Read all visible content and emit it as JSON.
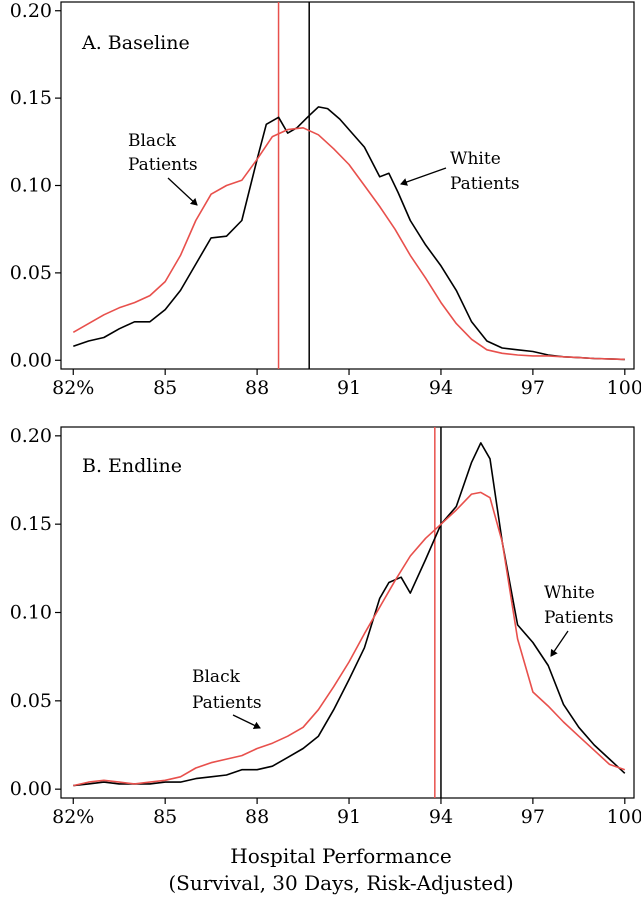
{
  "figure": {
    "xlabel": "Hospital Performance",
    "xlabel_sub": "(Survival, 30 Days, Risk-Adjusted)"
  },
  "chart_data": [
    {
      "type": "line",
      "title": "A. Baseline",
      "xlabel": "Hospital Performance (Survival, 30 Days, Risk-Adjusted)",
      "ylabel": "",
      "xlim": [
        81.6,
        100.3
      ],
      "ylim": [
        -0.005,
        0.205
      ],
      "xticks": [
        82,
        85,
        88,
        91,
        94,
        97,
        100
      ],
      "xtick_labels": [
        "82%",
        "85",
        "88",
        "91",
        "94",
        "97",
        "100"
      ],
      "yticks": [
        0,
        0.05,
        0.1,
        0.15,
        0.2
      ],
      "ytick_labels": [
        "0.00",
        "0.05",
        "0.10",
        "0.15",
        "0.20"
      ],
      "grid": false,
      "legend": "none",
      "series": [
        {
          "name": "White Patients",
          "color": "#000000",
          "x": [
            82,
            82.5,
            83,
            83.5,
            84,
            84.5,
            85,
            85.5,
            86,
            86.5,
            87,
            87.5,
            88,
            88.3,
            88.7,
            89,
            89.3,
            89.7,
            90,
            90.3,
            90.7,
            91,
            91.5,
            92,
            92.3,
            92.6,
            93,
            93.5,
            94,
            94.5,
            95,
            95.5,
            96,
            96.5,
            97,
            97.5,
            98,
            98.5,
            99,
            99.5,
            100
          ],
          "y": [
            0.008,
            0.011,
            0.013,
            0.018,
            0.022,
            0.022,
            0.029,
            0.04,
            0.055,
            0.07,
            0.071,
            0.08,
            0.115,
            0.135,
            0.139,
            0.13,
            0.133,
            0.14,
            0.145,
            0.144,
            0.138,
            0.132,
            0.122,
            0.105,
            0.107,
            0.096,
            0.08,
            0.066,
            0.054,
            0.04,
            0.022,
            0.011,
            0.007,
            0.006,
            0.005,
            0.003,
            0.002,
            0.0015,
            0.001,
            0.0008,
            0.0005
          ]
        },
        {
          "name": "Black Patients",
          "color": "#e8504c",
          "x": [
            82,
            82.5,
            83,
            83.5,
            84,
            84.5,
            85,
            85.5,
            86,
            86.5,
            87,
            87.5,
            88,
            88.5,
            89,
            89.5,
            90,
            90.5,
            91,
            91.5,
            92,
            92.5,
            93,
            93.5,
            94,
            94.5,
            95,
            95.5,
            96,
            96.5,
            97,
            97.5,
            98,
            98.5,
            99,
            99.5,
            100
          ],
          "y": [
            0.016,
            0.021,
            0.026,
            0.03,
            0.033,
            0.037,
            0.045,
            0.06,
            0.08,
            0.095,
            0.1,
            0.103,
            0.115,
            0.128,
            0.132,
            0.133,
            0.129,
            0.121,
            0.112,
            0.1,
            0.088,
            0.075,
            0.06,
            0.047,
            0.033,
            0.021,
            0.012,
            0.006,
            0.004,
            0.003,
            0.0025,
            0.0025,
            0.002,
            0.0015,
            0.001,
            0.0008,
            0.0005
          ]
        }
      ],
      "vlines": [
        {
          "series": "Black Patients",
          "x": 88.7,
          "color": "#e8504c"
        },
        {
          "series": "White Patients",
          "x": 89.7,
          "color": "#000000"
        }
      ],
      "annotations": [
        {
          "lines": [
            "Black",
            "Patients"
          ],
          "series": "Black Patients"
        },
        {
          "lines": [
            "White",
            "Patients"
          ],
          "series": "White Patients"
        }
      ]
    },
    {
      "type": "line",
      "title": "B. Endline",
      "xlabel": "Hospital Performance (Survival, 30 Days, Risk-Adjusted)",
      "ylabel": "",
      "xlim": [
        81.6,
        100.3
      ],
      "ylim": [
        -0.005,
        0.205
      ],
      "xticks": [
        82,
        85,
        88,
        91,
        94,
        97,
        100
      ],
      "xtick_labels": [
        "82%",
        "85",
        "88",
        "91",
        "94",
        "97",
        "100"
      ],
      "yticks": [
        0,
        0.05,
        0.1,
        0.15,
        0.2
      ],
      "ytick_labels": [
        "0.00",
        "0.05",
        "0.10",
        "0.15",
        "0.20"
      ],
      "grid": false,
      "legend": "none",
      "series": [
        {
          "name": "White Patients",
          "color": "#000000",
          "x": [
            82,
            82.5,
            83,
            83.5,
            84,
            84.5,
            85,
            85.5,
            86,
            86.5,
            87,
            87.5,
            88,
            88.5,
            89,
            89.5,
            90,
            90.5,
            91,
            91.5,
            92,
            92.3,
            92.7,
            93,
            93.5,
            94,
            94.5,
            95,
            95.3,
            95.6,
            96,
            96.5,
            97,
            97.5,
            98,
            98.5,
            99,
            99.5,
            100
          ],
          "y": [
            0.002,
            0.003,
            0.004,
            0.003,
            0.003,
            0.003,
            0.004,
            0.004,
            0.006,
            0.007,
            0.008,
            0.011,
            0.011,
            0.013,
            0.018,
            0.023,
            0.03,
            0.045,
            0.062,
            0.08,
            0.108,
            0.117,
            0.12,
            0.111,
            0.13,
            0.15,
            0.16,
            0.185,
            0.196,
            0.187,
            0.14,
            0.093,
            0.083,
            0.07,
            0.048,
            0.035,
            0.025,
            0.017,
            0.009
          ]
        },
        {
          "name": "Black Patients",
          "color": "#e8504c",
          "x": [
            82,
            82.5,
            83,
            83.5,
            84,
            84.5,
            85,
            85.5,
            86,
            86.5,
            87,
            87.5,
            88,
            88.5,
            89,
            89.5,
            90,
            90.5,
            91,
            91.5,
            92,
            92.5,
            93,
            93.5,
            94,
            94.5,
            95,
            95.3,
            95.6,
            96,
            96.5,
            97,
            97.5,
            98,
            98.5,
            99,
            99.5,
            100
          ],
          "y": [
            0.002,
            0.004,
            0.005,
            0.004,
            0.003,
            0.004,
            0.005,
            0.007,
            0.012,
            0.015,
            0.017,
            0.019,
            0.023,
            0.026,
            0.03,
            0.035,
            0.045,
            0.058,
            0.072,
            0.088,
            0.103,
            0.118,
            0.132,
            0.142,
            0.15,
            0.158,
            0.167,
            0.168,
            0.165,
            0.14,
            0.085,
            0.055,
            0.047,
            0.038,
            0.03,
            0.022,
            0.014,
            0.011
          ]
        }
      ],
      "vlines": [
        {
          "series": "Black Patients",
          "x": 93.8,
          "color": "#e8504c"
        },
        {
          "series": "White Patients",
          "x": 94.0,
          "color": "#000000"
        }
      ],
      "annotations": [
        {
          "lines": [
            "Black",
            "Patients"
          ],
          "series": "Black Patients"
        },
        {
          "lines": [
            "White",
            "Patients"
          ],
          "series": "White Patients"
        }
      ]
    }
  ]
}
